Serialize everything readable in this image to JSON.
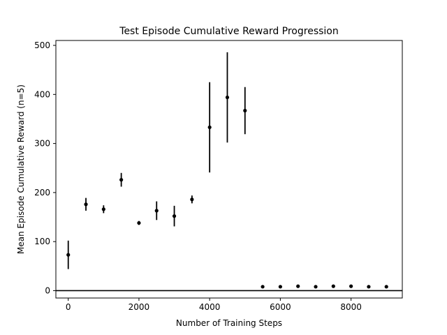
{
  "chart_data": {
    "type": "scatter",
    "title": "Test Episode Cumulative Reward Progression",
    "xlabel": "Number of Training Steps",
    "ylabel": "Mean Episode Cumulative Reward (n=5)",
    "xlim": [
      -350,
      9450
    ],
    "ylim": [
      -15,
      510
    ],
    "xticks": [
      0,
      2000,
      4000,
      6000,
      8000
    ],
    "yticks": [
      0,
      100,
      200,
      300,
      400,
      500
    ],
    "grid": false,
    "error_bars": true,
    "reference_line_y": 0,
    "series": [
      {
        "color": "#000000",
        "points": [
          {
            "x": 0,
            "y": 73,
            "err": 29
          },
          {
            "x": 500,
            "y": 176,
            "err": 13
          },
          {
            "x": 1000,
            "y": 166,
            "err": 8
          },
          {
            "x": 1500,
            "y": 226,
            "err": 14
          },
          {
            "x": 2000,
            "y": 138,
            "err": 4
          },
          {
            "x": 2500,
            "y": 163,
            "err": 19
          },
          {
            "x": 3000,
            "y": 152,
            "err": 21
          },
          {
            "x": 3500,
            "y": 186,
            "err": 8
          },
          {
            "x": 4000,
            "y": 333,
            "err": 92
          },
          {
            "x": 4500,
            "y": 394,
            "err": 92
          },
          {
            "x": 5000,
            "y": 367,
            "err": 48
          },
          {
            "x": 5500,
            "y": 8,
            "err": 0
          },
          {
            "x": 6000,
            "y": 8,
            "err": 0
          },
          {
            "x": 6500,
            "y": 9,
            "err": 0
          },
          {
            "x": 7000,
            "y": 8,
            "err": 0
          },
          {
            "x": 7500,
            "y": 9,
            "err": 0
          },
          {
            "x": 8000,
            "y": 9,
            "err": 0
          },
          {
            "x": 8500,
            "y": 8,
            "err": 0
          },
          {
            "x": 9000,
            "y": 8,
            "err": 0
          }
        ]
      }
    ]
  }
}
